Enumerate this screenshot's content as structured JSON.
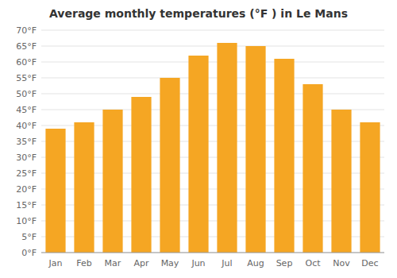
{
  "chart_data": {
    "type": "bar",
    "title": "Average monthly temperatures (°F ) in Le Mans",
    "categories": [
      "Jan",
      "Feb",
      "Mar",
      "Apr",
      "May",
      "Jun",
      "Jul",
      "Aug",
      "Sep",
      "Oct",
      "Nov",
      "Dec"
    ],
    "values": [
      39,
      41,
      45,
      49,
      55,
      62,
      66,
      65,
      61,
      53,
      45,
      41
    ],
    "color": "#F5A623",
    "ylim": [
      0,
      70
    ],
    "yticks": [
      {
        "value": 0,
        "label": "0°F"
      },
      {
        "value": 5,
        "label": "5°F"
      },
      {
        "value": 10,
        "label": "10°F"
      },
      {
        "value": 15,
        "label": "15°F"
      },
      {
        "value": 20,
        "label": "20°F"
      },
      {
        "value": 25,
        "label": "25°F"
      },
      {
        "value": 30,
        "label": "30°F"
      },
      {
        "value": 35,
        "label": "35°F"
      },
      {
        "value": 40,
        "label": "40°F"
      },
      {
        "value": 45,
        "label": "45°F"
      },
      {
        "value": 50,
        "label": "50°F"
      },
      {
        "value": 55,
        "label": "55°F"
      },
      {
        "value": 60,
        "label": "60°F"
      },
      {
        "value": 65,
        "label": "65°F"
      },
      {
        "value": 70,
        "label": "70°F"
      }
    ],
    "grid": true
  }
}
